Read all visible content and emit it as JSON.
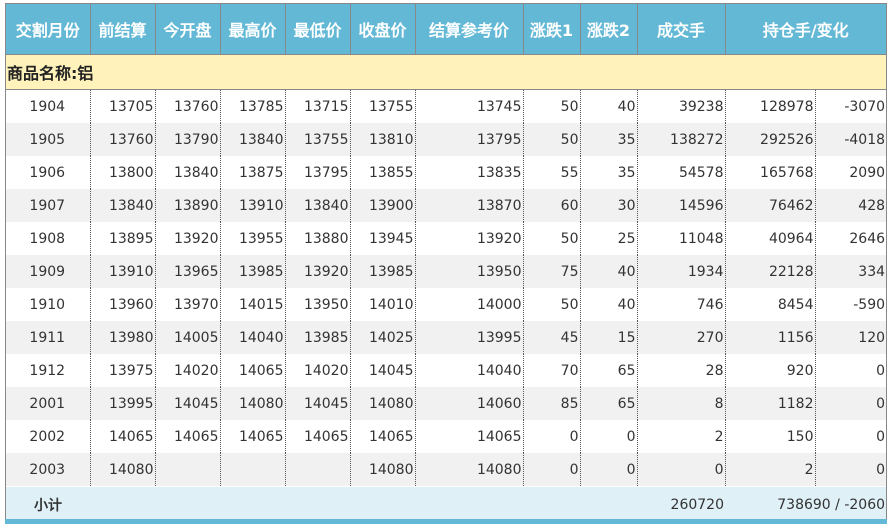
{
  "headers": [
    "交割月份",
    "前结算",
    "今开盘",
    "最高价",
    "最低价",
    "收盘价",
    "结算参考价",
    "涨跌1",
    "涨跌2",
    "成交手",
    "持仓手/变化"
  ],
  "group_label": "商品名称:铝",
  "rows": [
    [
      "1904",
      "13705",
      "13760",
      "13785",
      "13715",
      "13755",
      "13745",
      "50",
      "40",
      "39238",
      "128978",
      "-3070"
    ],
    [
      "1905",
      "13760",
      "13790",
      "13840",
      "13755",
      "13810",
      "13795",
      "50",
      "35",
      "138272",
      "292526",
      "-4018"
    ],
    [
      "1906",
      "13800",
      "13840",
      "13875",
      "13795",
      "13855",
      "13835",
      "55",
      "35",
      "54578",
      "165768",
      "2090"
    ],
    [
      "1907",
      "13840",
      "13890",
      "13910",
      "13840",
      "13900",
      "13870",
      "60",
      "30",
      "14596",
      "76462",
      "428"
    ],
    [
      "1908",
      "13895",
      "13920",
      "13955",
      "13880",
      "13945",
      "13920",
      "50",
      "25",
      "11048",
      "40964",
      "2646"
    ],
    [
      "1909",
      "13910",
      "13965",
      "13985",
      "13920",
      "13985",
      "13950",
      "75",
      "40",
      "1934",
      "22128",
      "334"
    ],
    [
      "1910",
      "13960",
      "13970",
      "14015",
      "13950",
      "14010",
      "14000",
      "50",
      "40",
      "746",
      "8454",
      "-590"
    ],
    [
      "1911",
      "13980",
      "14005",
      "14040",
      "13985",
      "14025",
      "13995",
      "45",
      "15",
      "270",
      "1156",
      "120"
    ],
    [
      "1912",
      "13975",
      "14020",
      "14065",
      "14020",
      "14045",
      "14040",
      "70",
      "65",
      "28",
      "920",
      "0"
    ],
    [
      "2001",
      "13995",
      "14045",
      "14080",
      "14045",
      "14080",
      "14060",
      "85",
      "65",
      "8",
      "1182",
      "0"
    ],
    [
      "2002",
      "14065",
      "14065",
      "14065",
      "14065",
      "14065",
      "14065",
      "0",
      "0",
      "2",
      "150",
      "0"
    ],
    [
      "2003",
      "14080",
      "",
      "",
      "",
      "14080",
      "14080",
      "0",
      "0",
      "0",
      "2",
      "0"
    ]
  ],
  "subtotal": {
    "label": "小计",
    "volume": "260720",
    "open_interest": "738690 / -2060"
  },
  "colors": {
    "header": "#63b8d5",
    "group": "#fff3bb",
    "subtotal": "#dff0f7"
  }
}
